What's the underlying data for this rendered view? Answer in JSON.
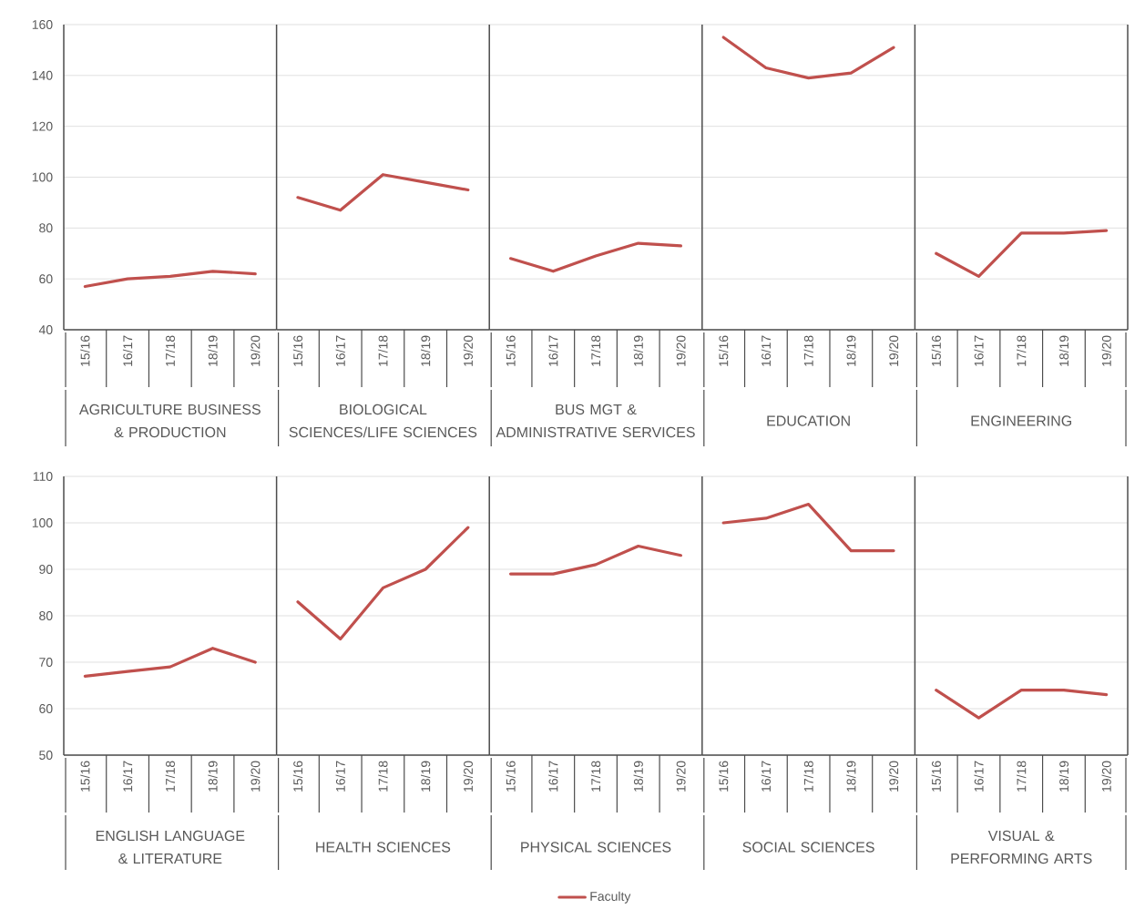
{
  "chart_data": [
    {
      "type": "line",
      "xlabel": "AGRICULTURE BUSINESS & PRODUCTION",
      "categories": [
        "15/16",
        "16/17",
        "17/18",
        "18/19",
        "19/20"
      ],
      "series": [
        {
          "color": "#c0504d",
          "values": [
            57,
            60,
            61,
            63,
            62
          ]
        }
      ],
      "ylim": [
        40,
        160
      ],
      "yticks": [
        40,
        60,
        80,
        100,
        120,
        140,
        160
      ],
      "grid": "y"
    },
    {
      "type": "line",
      "xlabel": "BIOLOGICAL SCIENCES/LIFE SCIENCES",
      "categories": [
        "15/16",
        "16/17",
        "17/18",
        "18/19",
        "19/20"
      ],
      "series": [
        {
          "color": "#c0504d",
          "values": [
            92,
            87,
            101,
            98,
            95
          ]
        }
      ],
      "ylim": [
        40,
        160
      ],
      "yticks": [
        40,
        60,
        80,
        100,
        120,
        140,
        160
      ],
      "grid": "y",
      "tick_labels": "x"
    },
    {
      "type": "line",
      "xlabel": "BUS MGT & ADMINISTRATIVE SERVICES",
      "categories": [
        "15/16",
        "16/17",
        "17/18",
        "18/19",
        "19/20"
      ],
      "series": [
        {
          "color": "#c0504d",
          "values": [
            68,
            63,
            69,
            74,
            73
          ]
        }
      ],
      "ylim": [
        40,
        160
      ],
      "yticks": [
        40,
        60,
        80,
        100,
        120,
        140,
        160
      ],
      "grid": "y",
      "tick_labels": "x"
    },
    {
      "type": "line",
      "xlabel": "EDUCATION",
      "categories": [
        "15/16",
        "16/17",
        "17/18",
        "18/19",
        "19/20"
      ],
      "series": [
        {
          "color": "#c0504d",
          "values": [
            155,
            143,
            139,
            141,
            151
          ]
        }
      ],
      "ylim": [
        40,
        160
      ],
      "yticks": [
        40,
        60,
        80,
        100,
        120,
        140,
        160
      ],
      "grid": "y",
      "tick_labels": "x"
    },
    {
      "type": "line",
      "xlabel": "ENGINEERING",
      "categories": [
        "15/16",
        "16/17",
        "17/18",
        "18/19",
        "19/20"
      ],
      "series": [
        {
          "color": "#c0504d",
          "values": [
            70,
            61,
            78,
            78,
            79
          ]
        }
      ],
      "ylim": [
        40,
        160
      ],
      "yticks": [
        40,
        60,
        80,
        100,
        120,
        140,
        160
      ],
      "grid": "y",
      "tick_labels": "x"
    },
    {
      "type": "line",
      "xlabel": "ENGLISH LANGUAGE & LITERATURE",
      "categories": [
        "15/16",
        "16/17",
        "17/18",
        "18/19",
        "19/20"
      ],
      "series": [
        {
          "color": "#c0504d",
          "values": [
            67,
            68,
            69,
            73,
            70
          ]
        }
      ],
      "ylim": [
        50,
        110
      ],
      "yticks": [
        50,
        60,
        70,
        80,
        90,
        100,
        110
      ],
      "grid": "y"
    },
    {
      "type": "line",
      "xlabel": "HEALTH SCIENCES",
      "categories": [
        "15/16",
        "16/17",
        "17/18",
        "18/19",
        "19/20"
      ],
      "series": [
        {
          "color": "#c0504d",
          "values": [
            83,
            75,
            86,
            90,
            99
          ]
        }
      ],
      "ylim": [
        50,
        110
      ],
      "yticks": [
        50,
        60,
        70,
        80,
        90,
        100,
        110
      ],
      "grid": "y",
      "tick_labels": "x"
    },
    {
      "type": "line",
      "xlabel": "PHYSICAL SCIENCES",
      "categories": [
        "15/16",
        "16/17",
        "17/18",
        "18/19",
        "19/20"
      ],
      "series": [
        {
          "name": "Faculty",
          "color": "#c0504d",
          "values": [
            89,
            89,
            91,
            95,
            93
          ]
        }
      ],
      "ylim": [
        50,
        110
      ],
      "yticks": [
        50,
        60,
        70,
        80,
        90,
        100,
        110
      ],
      "grid": "y",
      "tick_labels": "x",
      "legend": "bottom"
    },
    {
      "type": "line",
      "xlabel": "SOCIAL SCIENCES",
      "categories": [
        "15/16",
        "16/17",
        "17/18",
        "18/19",
        "19/20"
      ],
      "series": [
        {
          "color": "#c0504d",
          "values": [
            100,
            101,
            104,
            94,
            94
          ]
        }
      ],
      "ylim": [
        50,
        110
      ],
      "yticks": [
        50,
        60,
        70,
        80,
        90,
        100,
        110
      ],
      "grid": "y",
      "tick_labels": "x"
    },
    {
      "type": "line",
      "xlabel": "VISUAL & PERFORMING ARTS",
      "categories": [
        "15/16",
        "16/17",
        "17/18",
        "18/19",
        "19/20"
      ],
      "series": [
        {
          "color": "#c0504d",
          "values": [
            64,
            58,
            64,
            64,
            63
          ]
        }
      ],
      "ylim": [
        50,
        110
      ],
      "yticks": [
        50,
        60,
        70,
        80,
        90,
        100,
        110
      ],
      "grid": "y",
      "tick_labels": "x"
    }
  ]
}
